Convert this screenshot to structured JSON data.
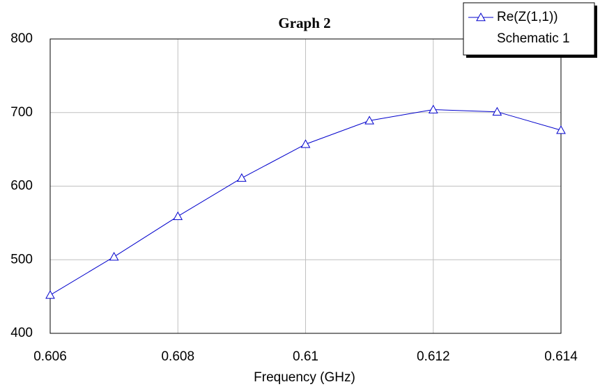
{
  "chart_data": {
    "type": "line",
    "title": "Graph 2",
    "x_label": "Frequency (GHz)",
    "x": [
      0.606,
      0.607,
      0.608,
      0.609,
      0.61,
      0.611,
      0.612,
      0.613,
      0.614
    ],
    "series": [
      {
        "name": "Re(Z(1,1))",
        "source": "Schematic 1",
        "color": "#0000cc",
        "marker": "triangle",
        "values": [
          452,
          504,
          559,
          611,
          657,
          689,
          704,
          701,
          676
        ]
      }
    ],
    "xlim": [
      0.606,
      0.614
    ],
    "xticks": [
      0.606,
      0.608,
      0.61,
      0.612,
      0.614
    ],
    "ylim": [
      400,
      800
    ],
    "yticks": [
      400,
      500,
      600,
      700,
      800
    ],
    "grid": true,
    "legend": "top-right"
  }
}
